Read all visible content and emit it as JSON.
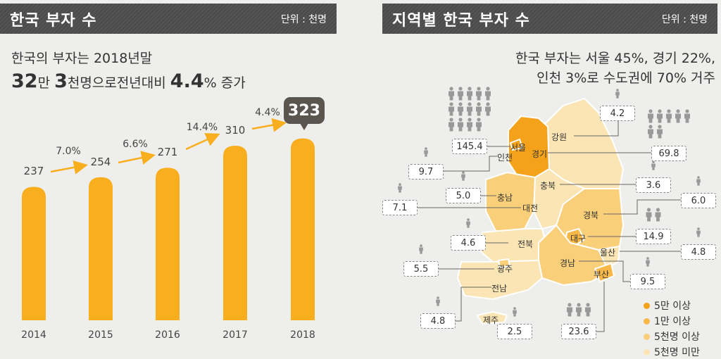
{
  "left": {
    "title": "한국 부자 수",
    "unit": "단위 : 천명",
    "subtitle_line1": "한국의 부자는 2018년말",
    "subtitle_line2": {
      "n1": "32",
      "t1": "만 ",
      "n2": "3",
      "t2": "천명으로전년대비 ",
      "n3": "4.4",
      "t3": "% 증가"
    }
  },
  "chart_data": {
    "type": "bar",
    "title": "한국 부자 수",
    "unit": "단위 : 천명",
    "categories": [
      "2014",
      "2015",
      "2016",
      "2017",
      "2018"
    ],
    "values": [
      237,
      254,
      271,
      310,
      323
    ],
    "value_labels": [
      "237",
      "254",
      "271",
      "310",
      "323"
    ],
    "growth_labels": [
      "7.0%",
      "6.6%",
      "14.4%",
      "4.4%"
    ],
    "highlight": "2018",
    "bar_color": "#f8ae1d",
    "highlight_color": "#5b5550"
  },
  "right": {
    "title": "지역별 한국 부자 수",
    "unit": "단위 : 천명",
    "headline1": "한국 부자는 서울 45%, 경기 22%,",
    "headline2": "인천 3%로 수도권에 70% 거주",
    "regions": [
      {
        "name": "서울",
        "value": "145.4",
        "tier": 0,
        "icons": 14
      },
      {
        "name": "인천",
        "value": "9.7",
        "tier": 2,
        "icons": 1
      },
      {
        "name": "강원",
        "value": "4.2",
        "tier": 3,
        "icons": 1
      },
      {
        "name": "경기",
        "value": "69.8",
        "tier": 0,
        "icons": 7
      },
      {
        "name": "충북",
        "value": "3.6",
        "tier": 3,
        "icons": 1
      },
      {
        "name": "충남",
        "value": "5.0",
        "tier": 2,
        "icons": 1
      },
      {
        "name": "대전",
        "value": "7.1",
        "tier": 2,
        "icons": 1
      },
      {
        "name": "경북",
        "value": "6.0",
        "tier": 2,
        "icons": 1
      },
      {
        "name": "대구",
        "value": "14.9",
        "tier": 1,
        "icons": 2
      },
      {
        "name": "전북",
        "value": "4.6",
        "tier": 3,
        "icons": 1
      },
      {
        "name": "울산",
        "value": "4.8",
        "tier": 3,
        "icons": 1
      },
      {
        "name": "광주",
        "value": "5.5",
        "tier": 2,
        "icons": 1
      },
      {
        "name": "경남",
        "value": "9.5",
        "tier": 2,
        "icons": 1
      },
      {
        "name": "부산",
        "value": "23.6",
        "tier": 1,
        "icons": 3
      },
      {
        "name": "전남",
        "value": "4.8",
        "tier": 3,
        "icons": 1
      },
      {
        "name": "제주",
        "value": "2.5",
        "tier": 3,
        "icons": 1
      }
    ],
    "legend": [
      {
        "label": "5만 이상",
        "color": "#f5a21b"
      },
      {
        "label": "1만 이상",
        "color": "#f7b847"
      },
      {
        "label": "5천명 이상",
        "color": "#f9cf7a"
      },
      {
        "label": "5천명 미만",
        "color": "#fbe5b5"
      }
    ]
  }
}
